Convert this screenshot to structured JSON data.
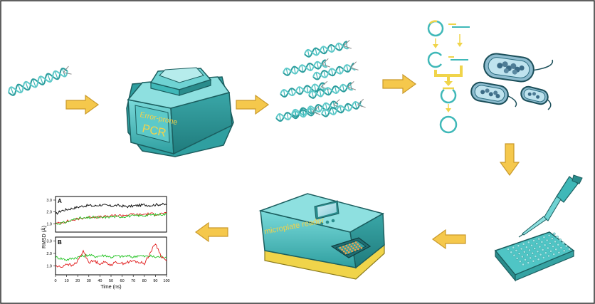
{
  "colors": {
    "frame": "#2b2b2b",
    "arrow_fill": "#f5c84c",
    "arrow_stroke": "#c9992a",
    "teal": "#3fb8b8",
    "teal_light": "#6fd3d3",
    "teal_dark": "#2a8c8c",
    "device_text": "#f2d24a",
    "plate_yellow": "#f0d44a",
    "rmsd_black": "#000000",
    "rmsd_red": "#e01818",
    "rmsd_green": "#22c322"
  },
  "pcr_machine": {
    "line1": "Error-prone",
    "line2": "PCR"
  },
  "reader": {
    "label": "microplate reader"
  },
  "rmsd_plot": {
    "ylabel": "RMSD (Å)",
    "xlabel": "Time (ns)",
    "panel_a_label": "A",
    "panel_b_label": "B",
    "x_ticks": [
      "0",
      "10",
      "20",
      "30",
      "40",
      "50",
      "60",
      "70",
      "80",
      "90",
      "100"
    ],
    "y_ticks_a": [
      "1.0",
      "2.0",
      "3.0"
    ],
    "y_ticks_b": [
      "1.0",
      "2.0",
      "3.0"
    ]
  },
  "chart_data": {
    "type": "line",
    "xlabel": "Time (ns)",
    "ylabel": "RMSD (Å)",
    "panels": [
      {
        "label": "A",
        "xlim": [
          0,
          100
        ],
        "ylim": [
          0.3,
          3.3
        ],
        "series": [
          {
            "color": "#000000",
            "x": [
              0,
              5,
              10,
              15,
              20,
              25,
              30,
              35,
              40,
              45,
              50,
              55,
              60,
              65,
              70,
              75,
              80,
              85,
              90,
              95,
              100
            ],
            "y": [
              1.8,
              2.1,
              2.2,
              2.3,
              2.4,
              2.5,
              2.55,
              2.5,
              2.6,
              2.55,
              2.5,
              2.55,
              2.5,
              2.45,
              2.5,
              2.55,
              2.6,
              2.55,
              2.6,
              2.65,
              2.6
            ]
          },
          {
            "color": "#e01818",
            "x": [
              0,
              5,
              10,
              15,
              20,
              25,
              30,
              35,
              40,
              45,
              50,
              55,
              60,
              65,
              70,
              75,
              80,
              85,
              90,
              95,
              100
            ],
            "y": [
              1.0,
              1.1,
              1.2,
              1.3,
              1.4,
              1.5,
              1.55,
              1.6,
              1.55,
              1.6,
              1.65,
              1.7,
              1.7,
              1.75,
              1.8,
              1.75,
              1.8,
              1.85,
              1.8,
              1.85,
              1.9
            ]
          },
          {
            "color": "#22c322",
            "x": [
              0,
              5,
              10,
              15,
              20,
              25,
              30,
              35,
              40,
              45,
              50,
              55,
              60,
              65,
              70,
              75,
              80,
              85,
              90,
              95,
              100
            ],
            "y": [
              1.0,
              1.05,
              1.15,
              1.3,
              1.5,
              1.45,
              1.5,
              1.55,
              1.5,
              1.55,
              1.6,
              1.6,
              1.6,
              1.65,
              1.65,
              1.7,
              1.7,
              1.75,
              1.75,
              1.8,
              1.8
            ]
          }
        ]
      },
      {
        "label": "B",
        "xlim": [
          0,
          100
        ],
        "ylim": [
          0.3,
          3.3
        ],
        "series": [
          {
            "color": "#22c322",
            "x": [
              0,
              5,
              10,
              15,
              20,
              25,
              30,
              35,
              40,
              45,
              50,
              55,
              60,
              65,
              70,
              75,
              80,
              85,
              90,
              95,
              100
            ],
            "y": [
              1.7,
              1.6,
              1.5,
              1.6,
              1.7,
              1.8,
              1.9,
              1.75,
              1.8,
              1.85,
              1.7,
              1.8,
              1.75,
              1.8,
              1.7,
              1.85,
              1.75,
              1.8,
              1.7,
              1.75,
              1.7
            ]
          },
          {
            "color": "#e01818",
            "x": [
              0,
              5,
              10,
              15,
              20,
              25,
              30,
              35,
              40,
              45,
              50,
              55,
              60,
              65,
              70,
              75,
              80,
              85,
              90,
              95,
              100
            ],
            "y": [
              1.0,
              0.9,
              1.2,
              1.0,
              1.4,
              2.2,
              1.3,
              1.4,
              1.2,
              1.3,
              1.1,
              1.3,
              1.2,
              1.3,
              1.4,
              1.3,
              1.2,
              2.0,
              2.8,
              1.8,
              1.4
            ]
          }
        ]
      }
    ]
  }
}
